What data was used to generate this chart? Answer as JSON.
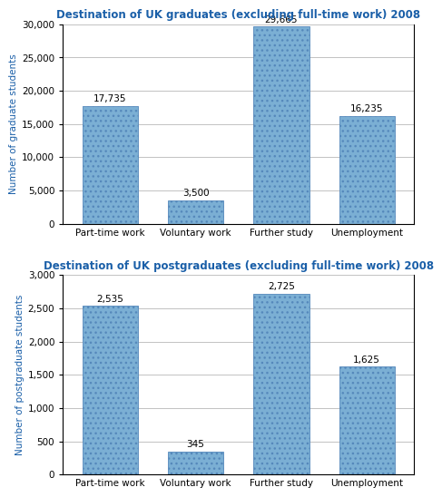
{
  "chart1": {
    "title": "Destination of UK graduates (excluding full-time work) 2008",
    "categories": [
      "Part-time work",
      "Voluntary work",
      "Further study",
      "Unemployment"
    ],
    "values": [
      17735,
      3500,
      29665,
      16235
    ],
    "labels": [
      "17,735",
      "3,500",
      "29,665",
      "16,235"
    ],
    "ylabel": "Number of graduate students",
    "ylim": [
      0,
      30000
    ],
    "yticks": [
      0,
      5000,
      10000,
      15000,
      20000,
      25000,
      30000
    ],
    "ytick_labels": [
      "0",
      "5,000",
      "10,000",
      "15,000",
      "20,000",
      "25,000",
      "30,000"
    ]
  },
  "chart2": {
    "title": "Destination of UK postgraduates (excluding full-time work) 2008",
    "categories": [
      "Part-time work",
      "Voluntary work",
      "Further study",
      "Unemployment"
    ],
    "values": [
      2535,
      345,
      2725,
      1625
    ],
    "labels": [
      "2,535",
      "345",
      "2,725",
      "1,625"
    ],
    "ylabel": "Number of postgraduate students",
    "ylim": [
      0,
      3000
    ],
    "yticks": [
      0,
      500,
      1000,
      1500,
      2000,
      2500,
      3000
    ],
    "ytick_labels": [
      "0",
      "500",
      "1,000",
      "1,500",
      "2,000",
      "2,500",
      "3,000"
    ]
  },
  "bar_color": "#7bafd4",
  "bar_color_edge": "#5588bb",
  "title_color": "#1a5fa8",
  "ylabel_color": "#1a5fa8",
  "label_fontsize": 7.5,
  "title_fontsize": 8.5,
  "ylabel_fontsize": 7.5,
  "tick_fontsize": 7.5,
  "background_color": "#ffffff",
  "bar_width": 0.65
}
